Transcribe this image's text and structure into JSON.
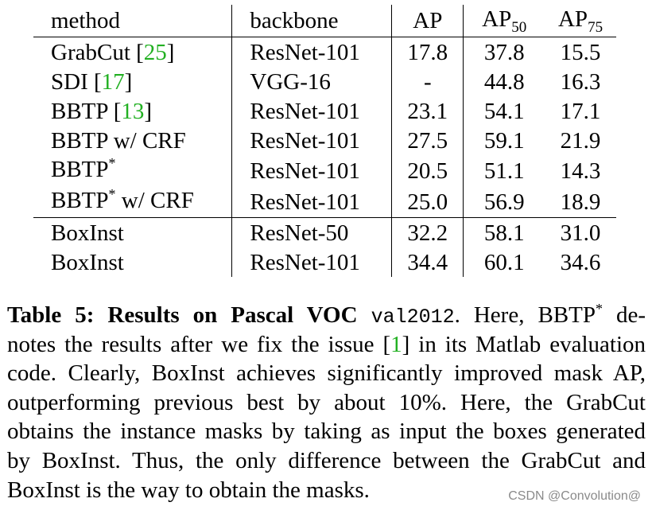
{
  "table": {
    "headers": {
      "method": "method",
      "backbone": "backbone",
      "ap": "AP",
      "ap50_base": "AP",
      "ap50_sub": "50",
      "ap75_base": "AP",
      "ap75_sub": "75"
    },
    "rows": [
      {
        "method": "GrabCut",
        "cite": "25",
        "sup": "",
        "suffix": "",
        "backbone": "ResNet-101",
        "ap": "17.8",
        "ap50": "37.8",
        "ap75": "15.5"
      },
      {
        "method": "SDI",
        "cite": "17",
        "sup": "",
        "suffix": "",
        "backbone": "VGG-16",
        "ap": "-",
        "ap50": "44.8",
        "ap75": "16.3"
      },
      {
        "method": "BBTP",
        "cite": "13",
        "sup": "",
        "suffix": "",
        "backbone": "ResNet-101",
        "ap": "23.1",
        "ap50": "54.1",
        "ap75": "17.1"
      },
      {
        "method": "BBTP w/ CRF",
        "cite": "",
        "sup": "",
        "suffix": "",
        "backbone": "ResNet-101",
        "ap": "27.5",
        "ap50": "59.1",
        "ap75": "21.9"
      },
      {
        "method": "BBTP",
        "cite": "",
        "sup": "*",
        "suffix": "",
        "backbone": "ResNet-101",
        "ap": "20.5",
        "ap50": "51.1",
        "ap75": "14.3"
      },
      {
        "method": "BBTP",
        "cite": "",
        "sup": "*",
        "suffix": " w/ CRF",
        "backbone": "ResNet-101",
        "ap": "25.0",
        "ap50": "56.9",
        "ap75": "18.9"
      }
    ],
    "ours": [
      {
        "method": "BoxInst",
        "backbone": "ResNet-50",
        "ap": "32.2",
        "ap50": "58.1",
        "ap75": "31.0"
      },
      {
        "method": "BoxInst",
        "backbone": "ResNet-101",
        "ap": "34.4",
        "ap50": "60.1",
        "ap75": "34.6"
      }
    ]
  },
  "caption": {
    "label": "Table 5: Results on Pascal VOC",
    "code": "val2012",
    "line1_after_code": ". Here, BBTP",
    "line1_sup": "*",
    "line1_end": " de-",
    "line2_start": "notes the results after we fix the issue [",
    "line2_cite": "1",
    "line2_end": "] in its Matlab evaluation",
    "line3": "code. Clearly, BoxInst achieves significantly improved mask AP,",
    "line4": "outperforming previous best by about 10%. Here, the GrabCut",
    "line5": "obtains the instance masks by taking as input the boxes generated",
    "line6": "by BoxInst. Thus, the only difference between the GrabCut and",
    "line7": "BoxInst is the way to obtain the masks."
  },
  "watermark": "CSDN @Convolution@"
}
